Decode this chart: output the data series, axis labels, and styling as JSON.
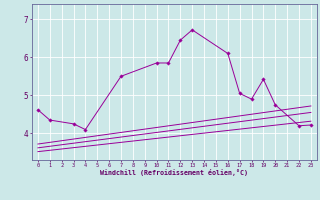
{
  "xlabel": "Windchill (Refroidissement éolien,°C)",
  "bg_color": "#cce8e8",
  "grid_color": "#ffffff",
  "line_color": "#990099",
  "xlim": [
    -0.5,
    23.5
  ],
  "ylim": [
    3.3,
    7.4
  ],
  "x_ticks": [
    0,
    1,
    2,
    3,
    4,
    5,
    6,
    7,
    8,
    9,
    10,
    11,
    12,
    13,
    14,
    15,
    16,
    17,
    18,
    19,
    20,
    21,
    22,
    23
  ],
  "y_ticks": [
    4,
    5,
    6,
    7
  ],
  "main_points_x": [
    0,
    1,
    3,
    4,
    7,
    10,
    11,
    12,
    13,
    16,
    17,
    18,
    19,
    20,
    22,
    23
  ],
  "main_points_y": [
    4.62,
    4.35,
    4.25,
    4.1,
    5.5,
    5.85,
    5.85,
    6.45,
    6.72,
    6.1,
    5.05,
    4.9,
    5.42,
    4.75,
    4.2,
    4.22
  ],
  "line1": {
    "x": [
      0,
      23
    ],
    "y": [
      3.72,
      4.72
    ]
  },
  "line2": {
    "x": [
      0,
      23
    ],
    "y": [
      3.62,
      4.55
    ]
  },
  "line3": {
    "x": [
      0,
      23
    ],
    "y": [
      3.52,
      4.32
    ]
  }
}
